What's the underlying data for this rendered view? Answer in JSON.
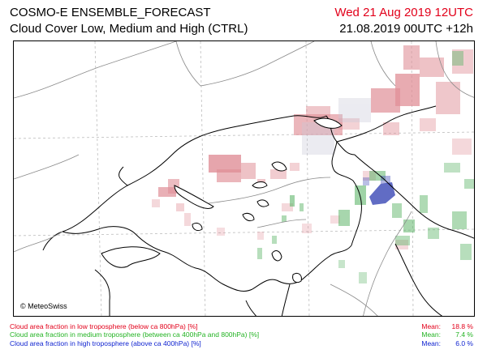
{
  "header": {
    "model": "COSMO-E ENSEMBLE_FORECAST",
    "product": "Cloud Cover Low, Medium and High (CTRL)",
    "valid_time": "Wed 21 Aug 2019 12UTC",
    "run_time": "21.08.2019 00UTC +12h"
  },
  "map": {
    "copyright": "© MeteoSwiss",
    "colors": {
      "low": "#e08f97",
      "medium": "#5fb56a",
      "high": "#3a47b5",
      "border": "#000000",
      "lake": "#ffffff"
    }
  },
  "legend": [
    {
      "label": "Cloud area fraction in low troposphere (below ca 800hPa) [%]",
      "mean_label": "Mean:",
      "mean_value": "18.8 %"
    },
    {
      "label": "Cloud area fraction in medium troposphere (between ca 400hPa and 800hPa) [%]",
      "mean_label": "Mean:",
      "mean_value": "7.4 %"
    },
    {
      "label": "Cloud area fraction in high troposphere (above ca 400hPa) [%]",
      "mean_label": "Mean:",
      "mean_value": "6.0 %"
    }
  ]
}
